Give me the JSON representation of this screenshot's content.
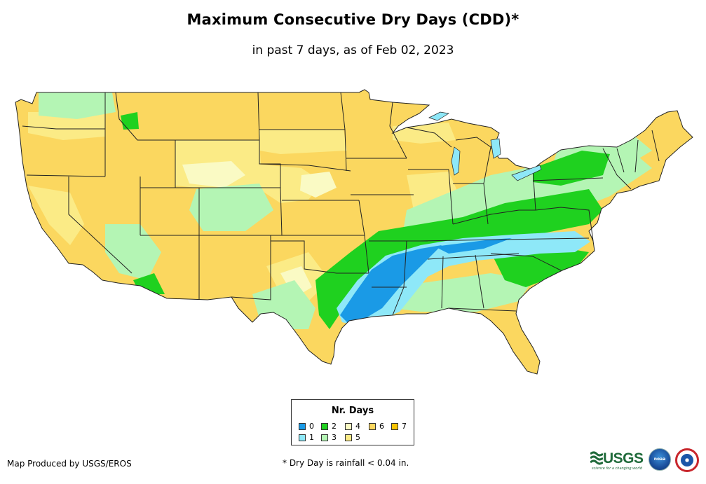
{
  "title": "Maximum Consecutive Dry Days (CDD)*",
  "subtitle": "in past 7 days, as of Feb 02, 2023",
  "legend": {
    "title": "Nr. Days",
    "items": [
      {
        "label": "0",
        "color": "#1a9ae6"
      },
      {
        "label": "1",
        "color": "#8ee8f8"
      },
      {
        "label": "2",
        "color": "#1fd11f"
      },
      {
        "label": "3",
        "color": "#b4f5b4"
      },
      {
        "label": "4",
        "color": "#fafac4"
      },
      {
        "label": "5",
        "color": "#fbeb86"
      },
      {
        "label": "6",
        "color": "#fbd75f"
      },
      {
        "label": "7",
        "color": "#f8c400"
      }
    ]
  },
  "credit": "Map Produced by USGS/EROS",
  "footnote": "* Dry Day is rainfall < 0.04 in.",
  "logos": {
    "usgs": "USGS",
    "usgs_tagline": "science for a changing world",
    "noaa": "noaa"
  }
}
